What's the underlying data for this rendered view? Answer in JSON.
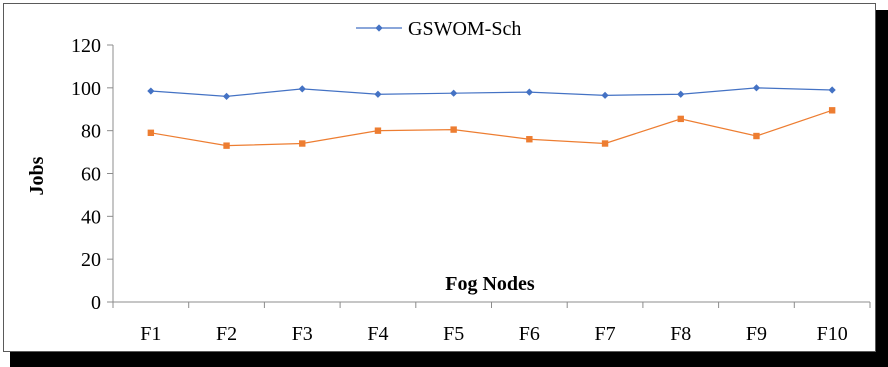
{
  "chart_data": {
    "type": "line",
    "title": "",
    "xlabel": "Fog Nodes",
    "ylabel": "Jobs",
    "categories": [
      "F1",
      "F2",
      "F3",
      "F4",
      "F5",
      "F6",
      "F7",
      "F8",
      "F9",
      "F10"
    ],
    "ylim": [
      0,
      120
    ],
    "yticks": [
      0,
      20,
      40,
      60,
      80,
      100,
      120
    ],
    "grid": false,
    "legend": "top-center",
    "series": [
      {
        "name": "GSWOM-Sch",
        "color": "#4472C4",
        "marker": "diamond",
        "values": [
          98.5,
          96,
          99.5,
          97,
          97.5,
          98,
          96.5,
          97,
          100,
          99
        ]
      },
      {
        "color": "#ED7D31",
        "marker": "square",
        "values": [
          79,
          73,
          74,
          80,
          80.5,
          76,
          74,
          85.5,
          77.5,
          89.5
        ]
      }
    ]
  }
}
